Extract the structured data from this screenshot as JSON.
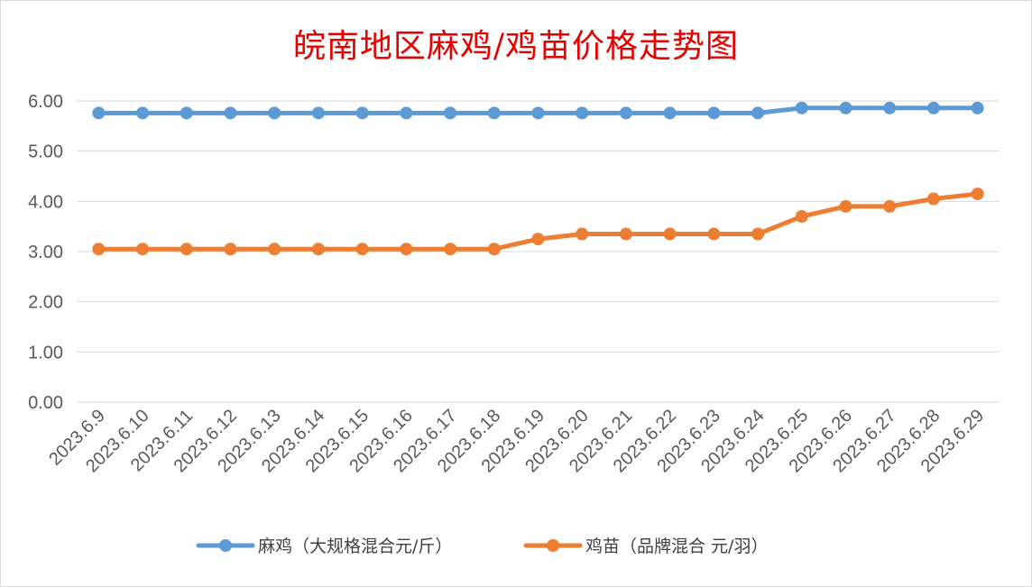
{
  "chart_data": {
    "type": "line",
    "title": "皖南地区麻鸡/鸡苗价格走势图",
    "categories": [
      "2023.6.9",
      "2023.6.10",
      "2023.6.11",
      "2023.6.12",
      "2023.6.13",
      "2023.6.14",
      "2023.6.15",
      "2023.6.16",
      "2023.6.17",
      "2023.6.18",
      "2023.6.19",
      "2023.6.20",
      "2023.6.21",
      "2023.6.22",
      "2023.6.23",
      "2023.6.24",
      "2023.6.25",
      "2023.6.26",
      "2023.6.27",
      "2023.6.28",
      "2023.6.29"
    ],
    "series": [
      {
        "name": "麻鸡（大规格混合元/斤）",
        "color": "#5b9bd5",
        "values": [
          5.76,
          5.76,
          5.76,
          5.76,
          5.76,
          5.76,
          5.76,
          5.76,
          5.76,
          5.76,
          5.76,
          5.76,
          5.76,
          5.76,
          5.76,
          5.76,
          5.86,
          5.86,
          5.86,
          5.86,
          5.86
        ]
      },
      {
        "name": "鸡苗（品牌混合 元/羽）",
        "color": "#ed7d31",
        "values": [
          3.05,
          3.05,
          3.05,
          3.05,
          3.05,
          3.05,
          3.05,
          3.05,
          3.05,
          3.05,
          3.25,
          3.35,
          3.35,
          3.35,
          3.35,
          3.35,
          3.7,
          3.9,
          3.9,
          4.05,
          4.15
        ]
      }
    ],
    "ylim": [
      0,
      6
    ],
    "yticks": [
      "0.00",
      "1.00",
      "2.00",
      "3.00",
      "4.00",
      "5.00",
      "6.00"
    ],
    "xlabel": "",
    "ylabel": "",
    "grid": true,
    "legend": "bottom"
  }
}
